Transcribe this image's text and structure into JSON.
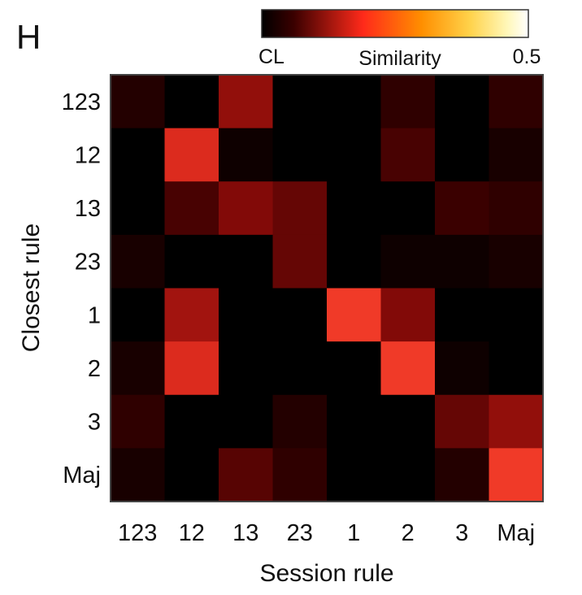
{
  "panel_label": "H",
  "chart_data": {
    "type": "heatmap",
    "xlabel": "Session rule",
    "ylabel": "Closest rule",
    "x_categories": [
      "123",
      "12",
      "13",
      "23",
      "1",
      "2",
      "3",
      "Maj"
    ],
    "y_categories": [
      "123",
      "12",
      "13",
      "23",
      "1",
      "2",
      "3",
      "Maj"
    ],
    "values": [
      [
        0.04,
        0.0,
        0.12,
        0.0,
        0.0,
        0.05,
        0.0,
        0.05
      ],
      [
        0.0,
        0.17,
        0.02,
        0.0,
        0.0,
        0.07,
        0.0,
        0.03
      ],
      [
        0.0,
        0.07,
        0.11,
        0.09,
        0.0,
        0.0,
        0.06,
        0.05
      ],
      [
        0.03,
        0.0,
        0.0,
        0.09,
        0.0,
        0.02,
        0.02,
        0.03
      ],
      [
        0.0,
        0.13,
        0.0,
        0.0,
        0.19,
        0.11,
        0.0,
        0.0
      ],
      [
        0.03,
        0.17,
        0.0,
        0.0,
        0.0,
        0.19,
        0.02,
        0.0
      ],
      [
        0.05,
        0.0,
        0.0,
        0.04,
        0.0,
        0.0,
        0.09,
        0.12
      ],
      [
        0.03,
        0.0,
        0.08,
        0.05,
        0.0,
        0.0,
        0.04,
        0.19
      ]
    ],
    "colorbar": {
      "title": "Similarity",
      "min_label": "CL",
      "max_label": "0.5",
      "vmin": 0,
      "vmax": 0.5,
      "colormap": "hot",
      "colors": [
        "#000000",
        "#3a0000",
        "#ff2a1a",
        "#ff8f00",
        "#ffd24a",
        "#fff7b8",
        "#ffffff"
      ]
    },
    "grid": false
  }
}
